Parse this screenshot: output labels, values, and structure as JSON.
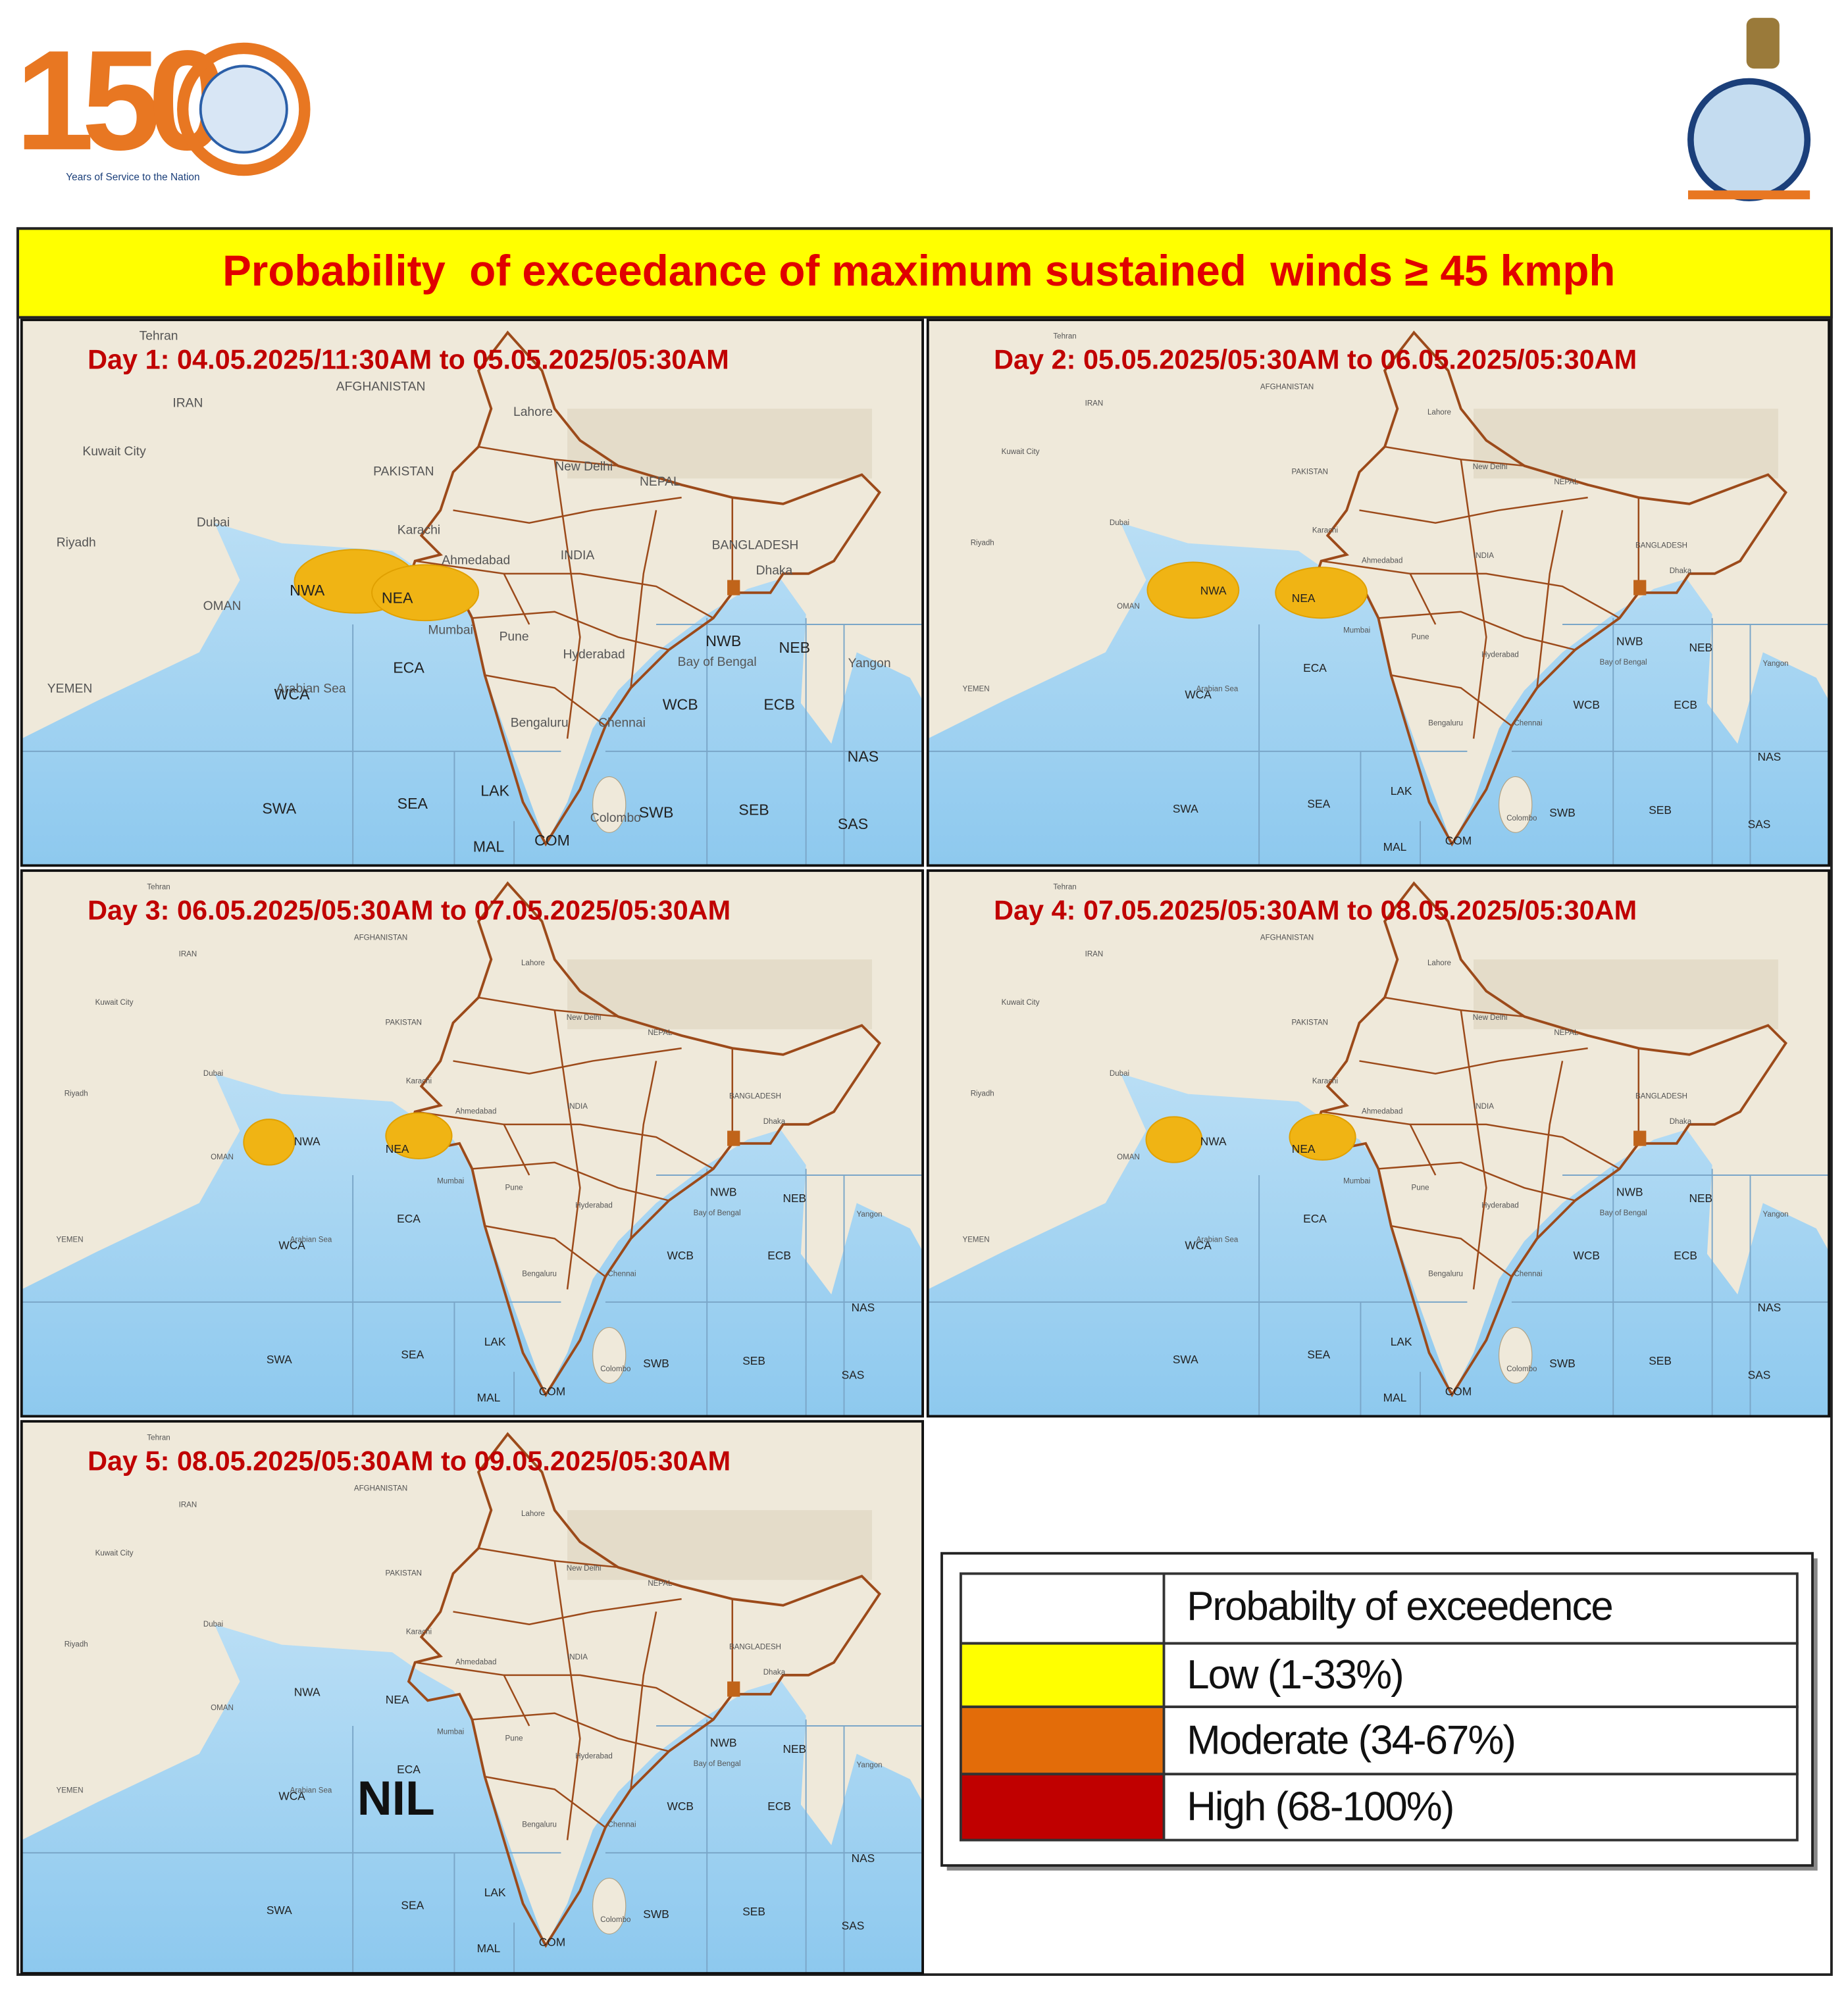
{
  "header": {
    "logo_number": "150",
    "logo_caption": "Years of Service to the Nation"
  },
  "title": "Probability  of exceedance of maximum sustained  winds ≥ 45 kmph",
  "panels": [
    {
      "label": "Day 1: 04.05.2025/11:30AM to 05.05.2025/05:30AM"
    },
    {
      "label": "Day 2: 05.05.2025/05:30AM to 06.05.2025/05:30AM"
    },
    {
      "label": "Day 3:  06.05.2025/05:30AM  to 07.05.2025/05:30AM"
    },
    {
      "label": "Day 4: 07.05.2025/05:30AM to 08.05.2025/05:30AM"
    },
    {
      "label": "Day 5: 08.05.2025/05:30AM to 09.05.2025/05:30AM",
      "note": "NIL"
    }
  ],
  "sea_regions": [
    "NWA",
    "NEA",
    "ECA",
    "WCA",
    "SWA",
    "SEA",
    "LAK",
    "MAL",
    "COM",
    "WCB",
    "ECB",
    "NWB",
    "NEB",
    "SWB",
    "SEB",
    "NAS",
    "SAS"
  ],
  "place_names": [
    "Tehran",
    "IRAN",
    "AFGHANISTAN",
    "Kuwait City",
    "PAKISTAN",
    "Riyadh",
    "Dubai",
    "OMAN",
    "YEMEN",
    "Karachi",
    "Lahore",
    "New Delhi",
    "NEPAL",
    "Ahmedabad",
    "INDIA",
    "Mumbai",
    "Pune",
    "Hyderabad",
    "Bengaluru",
    "Chennai",
    "Colombo",
    "Dhaka",
    "BANGLADESH",
    "Bay of Bengal",
    "Arabian Sea",
    "Yangon"
  ],
  "legend": {
    "header": "Probabilty of exceedence",
    "rows": [
      {
        "label": "Low (1-33%)",
        "color": "#ffff00"
      },
      {
        "label": "Moderate (34-67%)",
        "color": "#e36c09"
      },
      {
        "label": "High (68-100%)",
        "color": "#c00000"
      }
    ]
  }
}
